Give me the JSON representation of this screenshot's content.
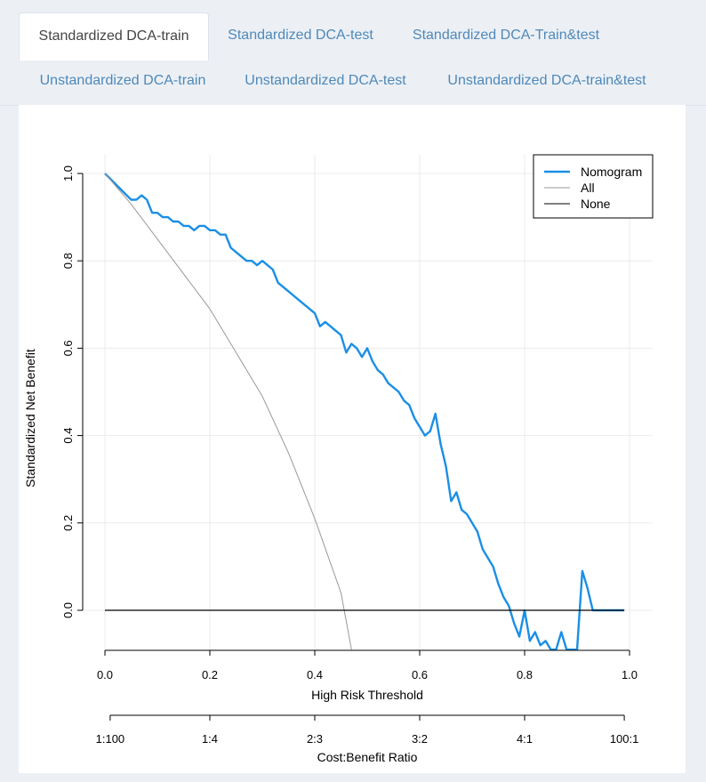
{
  "tabs": [
    {
      "label": "Standardized DCA-train",
      "active": true
    },
    {
      "label": "Standardized DCA-test",
      "active": false
    },
    {
      "label": "Standardized DCA-Train&test",
      "active": false
    },
    {
      "label": "Unstandardized DCA-train",
      "active": false
    },
    {
      "label": "Unstandardized DCA-test",
      "active": false
    },
    {
      "label": "Unstandardized DCA-train&test",
      "active": false
    }
  ],
  "colors": {
    "nomogram": "#1a8fe6",
    "all": "#999999",
    "none": "#000000"
  },
  "chart_data": {
    "type": "line",
    "title": "",
    "xlabel": "High Risk Threshold",
    "ylabel": "Standardized Net Benefit",
    "x2label": "Cost:Benefit Ratio",
    "xlim": [
      0,
      1
    ],
    "ylim": [
      -0.09,
      1.0
    ],
    "grid": true,
    "legend_position": "top-right",
    "xticks": [
      "0.0",
      "0.2",
      "0.4",
      "0.6",
      "0.8",
      "1.0"
    ],
    "yticks": [
      "0.0",
      "0.2",
      "0.4",
      "0.6",
      "0.8",
      "1.0"
    ],
    "x2ticks": [
      "1:100",
      "1:4",
      "2:3",
      "3:2",
      "4:1",
      "100:1"
    ],
    "x2tick_positions": [
      0.01,
      0.2,
      0.4,
      0.6,
      0.8,
      0.99
    ],
    "series": [
      {
        "name": "Nomogram",
        "x": [
          0.0,
          0.05,
          0.06,
          0.07,
          0.08,
          0.09,
          0.1,
          0.11,
          0.12,
          0.13,
          0.14,
          0.15,
          0.16,
          0.17,
          0.18,
          0.19,
          0.2,
          0.21,
          0.22,
          0.23,
          0.24,
          0.25,
          0.26,
          0.27,
          0.28,
          0.29,
          0.3,
          0.31,
          0.32,
          0.33,
          0.34,
          0.35,
          0.36,
          0.37,
          0.38,
          0.39,
          0.4,
          0.41,
          0.42,
          0.43,
          0.44,
          0.45,
          0.46,
          0.47,
          0.48,
          0.49,
          0.5,
          0.51,
          0.52,
          0.53,
          0.54,
          0.55,
          0.56,
          0.57,
          0.58,
          0.59,
          0.6,
          0.61,
          0.62,
          0.63,
          0.64,
          0.65,
          0.66,
          0.67,
          0.68,
          0.69,
          0.7,
          0.71,
          0.72,
          0.73,
          0.74,
          0.75,
          0.76,
          0.77,
          0.78,
          0.79,
          0.8,
          0.81,
          0.82,
          0.83,
          0.84,
          0.85,
          0.86,
          0.87,
          0.88,
          0.89,
          0.9,
          0.91,
          0.92,
          0.93,
          0.94,
          0.95,
          0.96,
          0.97,
          0.98,
          0.99
        ],
        "y": [
          1.0,
          0.94,
          0.94,
          0.95,
          0.94,
          0.91,
          0.91,
          0.9,
          0.9,
          0.89,
          0.89,
          0.88,
          0.88,
          0.87,
          0.88,
          0.88,
          0.87,
          0.87,
          0.86,
          0.86,
          0.83,
          0.82,
          0.81,
          0.8,
          0.8,
          0.79,
          0.8,
          0.79,
          0.78,
          0.75,
          0.74,
          0.73,
          0.72,
          0.71,
          0.7,
          0.69,
          0.68,
          0.65,
          0.66,
          0.65,
          0.64,
          0.63,
          0.59,
          0.61,
          0.6,
          0.58,
          0.6,
          0.57,
          0.55,
          0.54,
          0.52,
          0.51,
          0.5,
          0.48,
          0.47,
          0.44,
          0.42,
          0.4,
          0.41,
          0.45,
          0.38,
          0.33,
          0.25,
          0.27,
          0.23,
          0.22,
          0.2,
          0.18,
          0.14,
          0.12,
          0.1,
          0.06,
          0.03,
          0.01,
          -0.03,
          -0.06,
          0.0,
          -0.07,
          -0.05,
          -0.08,
          -0.07,
          -0.09,
          -0.09,
          -0.05,
          -0.09,
          -0.09,
          -0.09,
          0.09,
          0.05,
          0.0,
          0.0,
          0.0,
          0.0,
          0.0,
          0.0,
          0.0
        ]
      },
      {
        "name": "All",
        "x": [
          0.0,
          0.05,
          0.1,
          0.15,
          0.2,
          0.25,
          0.3,
          0.35,
          0.4,
          0.45,
          0.47
        ],
        "y": [
          1.0,
          0.93,
          0.85,
          0.77,
          0.69,
          0.59,
          0.49,
          0.36,
          0.21,
          0.04,
          -0.09
        ]
      },
      {
        "name": "None",
        "x": [
          0.0,
          0.99
        ],
        "y": [
          0.0,
          0.0
        ]
      }
    ]
  }
}
